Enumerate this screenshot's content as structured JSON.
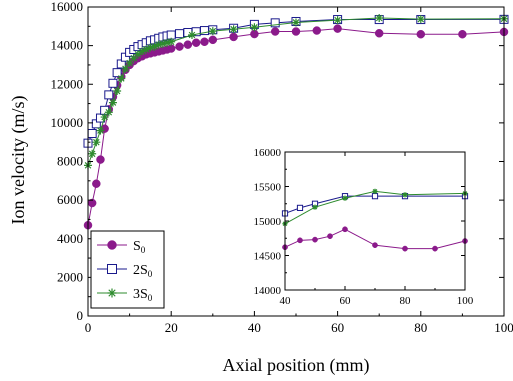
{
  "chart_data": [
    {
      "type": "line",
      "xlabel": "Axial position (mm)",
      "ylabel": "Ion velocity (m/s)",
      "xlim": [
        0,
        100
      ],
      "ylim": [
        0,
        16000
      ],
      "xticks": [
        0,
        20,
        40,
        60,
        80,
        100
      ],
      "yticks": [
        0,
        2000,
        4000,
        6000,
        8000,
        10000,
        12000,
        14000,
        16000
      ],
      "legend_placement": "lower-left",
      "grid": false,
      "series": [
        {
          "name": "S0",
          "label_main": "S",
          "label_sub": "0",
          "label_prefix": "",
          "color": "#8B1A8B",
          "marker": "filled-circle",
          "x": [
            0,
            1,
            2,
            3,
            4,
            5,
            6,
            7,
            8,
            9,
            10,
            11,
            12,
            13,
            14,
            15,
            16,
            17,
            18,
            19,
            20,
            22,
            24,
            26,
            28,
            30,
            35,
            40,
            45,
            50,
            55,
            60,
            70,
            80,
            90,
            100
          ],
          "y": [
            4700,
            5850,
            6850,
            8100,
            9700,
            10700,
            11350,
            11950,
            12400,
            12750,
            13000,
            13200,
            13350,
            13450,
            13550,
            13600,
            13650,
            13700,
            13750,
            13800,
            13850,
            13950,
            14050,
            14150,
            14200,
            14300,
            14450,
            14600,
            14730,
            14730,
            14780,
            14880,
            14640,
            14590,
            14590,
            14710
          ]
        },
        {
          "name": "2S0",
          "label_main": "S",
          "label_sub": "0",
          "label_prefix": "2",
          "color": "#1A1A8C",
          "marker": "open-square",
          "x": [
            0,
            1,
            2,
            3,
            4,
            5,
            6,
            7,
            8,
            9,
            10,
            11,
            12,
            13,
            14,
            15,
            16,
            17,
            18,
            19,
            20,
            22,
            24,
            26,
            28,
            30,
            35,
            40,
            45,
            50,
            60,
            70,
            80,
            100
          ],
          "y": [
            8950,
            9450,
            9950,
            10250,
            10650,
            11450,
            12050,
            12600,
            13050,
            13400,
            13650,
            13800,
            13950,
            14050,
            14150,
            14250,
            14300,
            14380,
            14450,
            14500,
            14550,
            14620,
            14680,
            14720,
            14780,
            14820,
            14900,
            15100,
            15180,
            15250,
            15350,
            15350,
            15350,
            15360
          ]
        },
        {
          "name": "3S0",
          "label_main": "S",
          "label_sub": "0",
          "label_prefix": "3",
          "color": "#2E8B2E",
          "marker": "asterisk",
          "x": [
            0,
            1,
            2,
            3,
            4,
            5,
            6,
            7,
            8,
            9,
            10,
            11,
            12,
            13,
            14,
            15,
            16,
            17,
            18,
            19,
            20,
            25,
            30,
            35,
            40,
            50,
            60,
            70,
            80,
            100
          ],
          "y": [
            7800,
            8400,
            9000,
            9600,
            10300,
            10550,
            11050,
            11650,
            12300,
            12800,
            13100,
            13350,
            13550,
            13700,
            13800,
            13900,
            13950,
            14050,
            14100,
            14150,
            14200,
            14550,
            14750,
            14850,
            14950,
            15200,
            15320,
            15430,
            15370,
            15390
          ]
        }
      ]
    },
    {
      "type": "line",
      "placement": "inset-lower-right",
      "xlabel": "",
      "ylabel": "",
      "xlim": [
        40,
        100
      ],
      "ylim": [
        14000,
        16000
      ],
      "xticks": [
        40,
        60,
        80,
        100
      ],
      "yticks": [
        14000,
        14500,
        15000,
        15500,
        16000
      ],
      "grid": false,
      "series": [
        {
          "name": "S0",
          "color": "#8B1A8B",
          "marker": "filled-circle",
          "x": [
            40,
            45,
            50,
            55,
            60,
            70,
            80,
            90,
            100
          ],
          "y": [
            14620,
            14720,
            14730,
            14780,
            14880,
            14650,
            14600,
            14600,
            14710
          ]
        },
        {
          "name": "2S0",
          "color": "#1A1A8C",
          "marker": "open-square",
          "x": [
            40,
            45,
            50,
            60,
            70,
            80,
            100
          ],
          "y": [
            15110,
            15190,
            15250,
            15360,
            15360,
            15360,
            15360
          ]
        },
        {
          "name": "3S0",
          "color": "#2E8B2E",
          "marker": "asterisk",
          "x": [
            40,
            50,
            60,
            70,
            80,
            100
          ],
          "y": [
            14960,
            15200,
            15330,
            15430,
            15380,
            15400
          ]
        }
      ]
    }
  ]
}
